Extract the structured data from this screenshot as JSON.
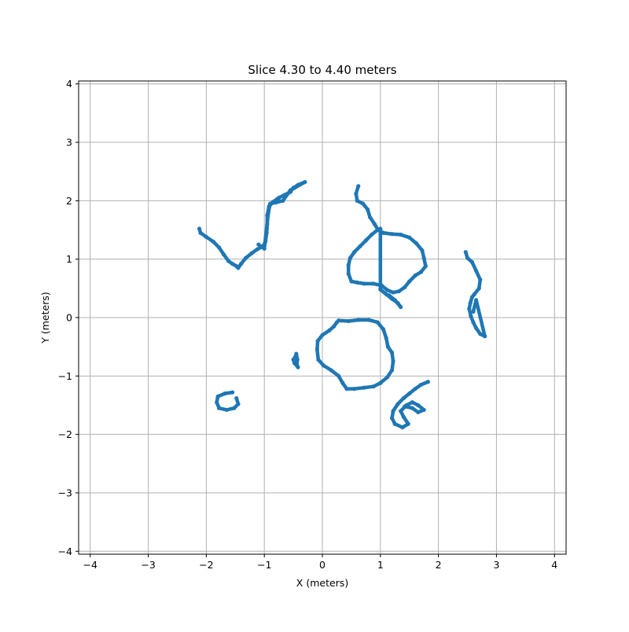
{
  "chart_data": {
    "type": "scatter",
    "title": "Slice 4.30 to 4.40 meters",
    "xlabel": "X (meters)",
    "ylabel": "Y (meters)",
    "xlim": [
      -4.2,
      4.2
    ],
    "ylim": [
      -4.05,
      4.05
    ],
    "xticks": [
      -4,
      -3,
      -2,
      -1,
      0,
      1,
      2,
      3,
      4
    ],
    "yticks": [
      -4,
      -3,
      -2,
      -1,
      0,
      1,
      2,
      3,
      4
    ],
    "xtick_labels": [
      "−4",
      "−3",
      "−2",
      "−1",
      "0",
      "1",
      "2",
      "3",
      "4"
    ],
    "ytick_labels": [
      "−4",
      "−3",
      "−2",
      "−1",
      "0",
      "1",
      "2",
      "3",
      "4"
    ],
    "grid": true,
    "color": "#1f77b4",
    "series": [
      {
        "points": [
          [
            -2.12,
            1.52
          ],
          [
            -2.1,
            1.45
          ],
          [
            -2.0,
            1.38
          ],
          [
            -1.88,
            1.3
          ],
          [
            -1.78,
            1.2
          ],
          [
            -1.7,
            1.08
          ],
          [
            -1.62,
            0.97
          ],
          [
            -1.55,
            0.92
          ],
          [
            -1.48,
            0.88
          ],
          [
            -1.45,
            0.85
          ],
          [
            -1.4,
            0.92
          ],
          [
            -1.32,
            1.02
          ],
          [
            -1.22,
            1.1
          ],
          [
            -1.12,
            1.17
          ],
          [
            -1.02,
            1.22
          ],
          [
            -0.98,
            1.3
          ],
          [
            -0.96,
            1.45
          ],
          [
            -0.95,
            1.6
          ],
          [
            -0.95,
            1.75
          ],
          [
            -0.92,
            1.9
          ],
          [
            -0.85,
            1.98
          ],
          [
            -0.75,
            2.05
          ],
          [
            -0.65,
            2.1
          ],
          [
            -0.55,
            2.15
          ],
          [
            -0.5,
            2.22
          ],
          [
            -0.42,
            2.27
          ],
          [
            -0.3,
            2.32
          ],
          [
            -0.55,
            2.18
          ],
          [
            -0.68,
            2.0
          ],
          [
            -0.8,
            1.97
          ],
          [
            -0.9,
            1.95
          ],
          [
            -0.93,
            1.8
          ],
          [
            -1.0,
            1.18
          ],
          [
            -1.1,
            1.25
          ]
        ]
      },
      {
        "points": [
          [
            0.62,
            2.25
          ],
          [
            0.58,
            2.12
          ],
          [
            0.6,
            2.0
          ],
          [
            0.7,
            1.95
          ],
          [
            0.78,
            1.85
          ],
          [
            0.82,
            1.72
          ],
          [
            0.9,
            1.6
          ],
          [
            0.96,
            1.5
          ],
          [
            1.05,
            1.45
          ],
          [
            1.2,
            1.43
          ],
          [
            1.35,
            1.42
          ],
          [
            1.5,
            1.37
          ],
          [
            1.62,
            1.27
          ],
          [
            1.72,
            1.15
          ],
          [
            1.75,
            1.02
          ],
          [
            1.78,
            0.88
          ],
          [
            1.7,
            0.78
          ],
          [
            1.6,
            0.72
          ],
          [
            1.5,
            0.62
          ],
          [
            1.42,
            0.52
          ],
          [
            1.32,
            0.45
          ],
          [
            1.22,
            0.43
          ],
          [
            1.12,
            0.47
          ],
          [
            1.02,
            0.55
          ],
          [
            0.88,
            0.58
          ],
          [
            0.72,
            0.58
          ],
          [
            0.6,
            0.6
          ],
          [
            0.5,
            0.62
          ],
          [
            0.45,
            0.75
          ],
          [
            0.45,
            0.9
          ],
          [
            0.48,
            1.02
          ],
          [
            0.55,
            1.12
          ],
          [
            0.65,
            1.22
          ],
          [
            0.75,
            1.32
          ],
          [
            0.85,
            1.42
          ],
          [
            0.95,
            1.5
          ],
          [
            1.0,
            1.52
          ],
          [
            1.0,
            0.48
          ],
          [
            1.1,
            0.4
          ],
          [
            1.2,
            0.32
          ],
          [
            1.3,
            0.25
          ],
          [
            1.35,
            0.18
          ],
          [
            1.25,
            0.3
          ],
          [
            1.15,
            0.38
          ]
        ]
      },
      {
        "points": [
          [
            2.47,
            1.12
          ],
          [
            2.5,
            1.02
          ],
          [
            2.58,
            0.95
          ],
          [
            2.65,
            0.8
          ],
          [
            2.72,
            0.65
          ],
          [
            2.7,
            0.5
          ],
          [
            2.62,
            0.4
          ],
          [
            2.58,
            0.35
          ],
          [
            2.55,
            0.25
          ],
          [
            2.53,
            0.15
          ],
          [
            2.56,
            0.02
          ],
          [
            2.6,
            -0.08
          ],
          [
            2.65,
            -0.18
          ],
          [
            2.72,
            -0.28
          ],
          [
            2.8,
            -0.32
          ],
          [
            2.65,
            0.3
          ],
          [
            2.6,
            0.1
          ]
        ]
      },
      {
        "points": [
          [
            0.28,
            -0.05
          ],
          [
            0.45,
            -0.06
          ],
          [
            0.62,
            -0.04
          ],
          [
            0.8,
            -0.04
          ],
          [
            0.95,
            -0.08
          ],
          [
            1.05,
            -0.2
          ],
          [
            1.1,
            -0.35
          ],
          [
            1.13,
            -0.5
          ],
          [
            1.2,
            -0.6
          ],
          [
            1.22,
            -0.75
          ],
          [
            1.2,
            -0.9
          ],
          [
            1.12,
            -1.02
          ],
          [
            1.0,
            -1.12
          ],
          [
            0.88,
            -1.18
          ],
          [
            0.72,
            -1.2
          ],
          [
            0.55,
            -1.22
          ],
          [
            0.42,
            -1.22
          ],
          [
            0.35,
            -1.12
          ],
          [
            0.28,
            -1.0
          ],
          [
            0.15,
            -0.9
          ],
          [
            0.02,
            -0.82
          ],
          [
            -0.07,
            -0.72
          ],
          [
            -0.09,
            -0.55
          ],
          [
            -0.08,
            -0.4
          ],
          [
            0.0,
            -0.3
          ],
          [
            0.12,
            -0.22
          ],
          [
            0.2,
            -0.15
          ],
          [
            0.25,
            -0.08
          ]
        ]
      },
      {
        "points": [
          [
            -0.45,
            -0.62
          ],
          [
            -0.43,
            -0.72
          ],
          [
            -0.44,
            -0.8
          ],
          [
            -0.42,
            -0.85
          ],
          [
            -0.48,
            -0.78
          ],
          [
            -0.5,
            -0.72
          ],
          [
            -0.46,
            -0.66
          ]
        ]
      },
      {
        "points": [
          [
            -1.55,
            -1.28
          ],
          [
            -1.68,
            -1.3
          ],
          [
            -1.8,
            -1.35
          ],
          [
            -1.82,
            -1.45
          ],
          [
            -1.78,
            -1.55
          ],
          [
            -1.65,
            -1.58
          ],
          [
            -1.52,
            -1.55
          ],
          [
            -1.45,
            -1.48
          ],
          [
            -1.48,
            -1.38
          ]
        ]
      },
      {
        "points": [
          [
            1.82,
            -1.1
          ],
          [
            1.7,
            -1.15
          ],
          [
            1.6,
            -1.22
          ],
          [
            1.5,
            -1.3
          ],
          [
            1.4,
            -1.38
          ],
          [
            1.3,
            -1.48
          ],
          [
            1.22,
            -1.6
          ],
          [
            1.2,
            -1.72
          ],
          [
            1.25,
            -1.82
          ],
          [
            1.38,
            -1.88
          ],
          [
            1.48,
            -1.82
          ],
          [
            1.4,
            -1.7
          ],
          [
            1.35,
            -1.6
          ],
          [
            1.45,
            -1.5
          ],
          [
            1.55,
            -1.45
          ],
          [
            1.65,
            -1.5
          ],
          [
            1.75,
            -1.58
          ],
          [
            1.65,
            -1.62
          ],
          [
            1.55,
            -1.55
          ],
          [
            1.42,
            -1.52
          ]
        ]
      }
    ]
  }
}
